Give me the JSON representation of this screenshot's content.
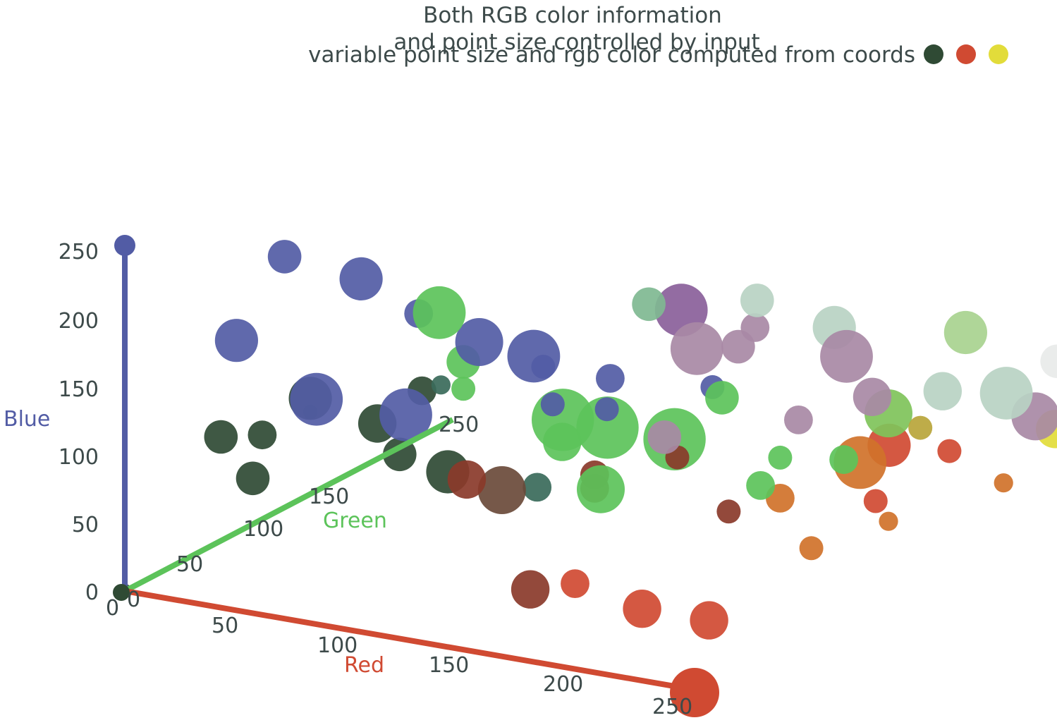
{
  "chart_data": {
    "type": "scatter",
    "projection": "3d",
    "title": "Both RGB color information",
    "subtitle": "and point size controlled by input",
    "legend_label": "variable point size and rgb color computed from coords",
    "legend_placement": "top-right",
    "legend_swatches": [
      "#2f4a34",
      "#d04a32",
      "#e2dc3a"
    ],
    "axes": {
      "red": {
        "label": "Red",
        "color": "#d04a32",
        "range": [
          0,
          255
        ],
        "ticks": [
          "0",
          "50",
          "100",
          "150",
          "200",
          "250"
        ]
      },
      "green": {
        "label": "Green",
        "color": "#5cc35a",
        "range": [
          0,
          255
        ],
        "ticks": [
          "0",
          "50",
          "100",
          "150",
          "250"
        ]
      },
      "blue": {
        "label": "Blue",
        "color": "#525ca5",
        "range": [
          0,
          255
        ],
        "ticks": [
          "0",
          "50",
          "100",
          "150",
          "200",
          "250"
        ]
      }
    },
    "series": [
      {
        "columns": [
          "r",
          "g",
          "b",
          "size",
          "color"
        ],
        "points": [
          [
            0,
            0,
            0,
            3,
            "#2f4a34"
          ],
          [
            255,
            0,
            0,
            8,
            "#d04a32"
          ],
          [
            0,
            0,
            255,
            3,
            "#525ca5"
          ],
          [
            60,
            20,
            255,
            7,
            "#525ca5"
          ],
          [
            100,
            10,
            255,
            9,
            "#525ca5"
          ],
          [
            150,
            15,
            220,
            10,
            "#525ca5"
          ],
          [
            160,
            40,
            200,
            11,
            "#525ca5"
          ],
          [
            50,
            0,
            200,
            9,
            "#525ca5"
          ],
          [
            80,
            10,
            160,
            11,
            "#525ca5"
          ],
          [
            120,
            10,
            160,
            11,
            "#525ca5"
          ],
          [
            135,
            10,
            240,
            11,
            "#5cc35a"
          ],
          [
            120,
            20,
            230,
            6,
            "#525ca5"
          ],
          [
            200,
            60,
            240,
            7,
            "#7fb891"
          ],
          [
            260,
            40,
            270,
            7,
            "#b9d3c3"
          ],
          [
            400,
            30,
            270,
            7,
            "#e8eae9"
          ],
          [
            260,
            100,
            220,
            9,
            "#b9d3c3"
          ],
          [
            210,
            80,
            200,
            11,
            "#a889a5"
          ],
          [
            300,
            40,
            240,
            11,
            "#a889a5"
          ],
          [
            300,
            60,
            200,
            8,
            "#a889a5"
          ],
          [
            290,
            150,
            200,
            9,
            "#a8d38f"
          ],
          [
            350,
            100,
            180,
            10,
            "#a889a5"
          ],
          [
            360,
            60,
            220,
            11,
            "#b9d3c3"
          ],
          [
            320,
            80,
            200,
            8,
            "#b9d3c3"
          ],
          [
            180,
            120,
            200,
            11,
            "#8a5f9a"
          ],
          [
            190,
            160,
            170,
            6,
            "#a889a5"
          ],
          [
            290,
            90,
            170,
            10,
            "#7fc35a"
          ],
          [
            330,
            170,
            150,
            8,
            "#e2dc3a"
          ],
          [
            330,
            150,
            140,
            8,
            "#e2dc3a"
          ],
          [
            300,
            120,
            130,
            5,
            "#d04a32"
          ],
          [
            290,
            80,
            110,
            5,
            "#d04a32"
          ],
          [
            260,
            120,
            110,
            11,
            "#d0722a"
          ],
          [
            250,
            160,
            100,
            9,
            "#d04a32"
          ],
          [
            330,
            220,
            120,
            10,
            "#e2dc3a"
          ],
          [
            320,
            250,
            120,
            10,
            "#e2dc3a"
          ],
          [
            290,
            90,
            90,
            4,
            "#d0722a"
          ],
          [
            250,
            20,
            40,
            8,
            "#d04a32"
          ],
          [
            220,
            20,
            40,
            8,
            "#d04a32"
          ],
          [
            190,
            20,
            50,
            6,
            "#d04a32"
          ],
          [
            170,
            20,
            40,
            8,
            "#8a3a2a"
          ],
          [
            200,
            80,
            130,
            13,
            "#5cc35a"
          ],
          [
            170,
            80,
            130,
            13,
            "#5cc35a"
          ],
          [
            150,
            80,
            130,
            13,
            "#5cc35a"
          ],
          [
            190,
            40,
            110,
            10,
            "#5cc35a"
          ],
          [
            170,
            70,
            100,
            6,
            "#8a3a2a"
          ],
          [
            230,
            110,
            110,
            5,
            "#5cc35a"
          ],
          [
            140,
            50,
            90,
            10,
            "#6a4a3a"
          ],
          [
            110,
            60,
            90,
            9,
            "#2f4a34"
          ],
          [
            60,
            40,
            140,
            9,
            "#2f4a34"
          ],
          [
            40,
            30,
            80,
            7,
            "#2f4a34"
          ],
          [
            20,
            40,
            100,
            7,
            "#2f4a34"
          ],
          [
            50,
            20,
            120,
            6,
            "#2f4a34"
          ],
          [
            90,
            40,
            130,
            8,
            "#2f4a34"
          ],
          [
            100,
            40,
            110,
            7,
            "#2f4a34"
          ],
          [
            130,
            40,
            100,
            8,
            "#8a3a2a"
          ],
          [
            150,
            60,
            90,
            6,
            "#3a6a5a"
          ],
          [
            140,
            20,
            200,
            7,
            "#5cc35a"
          ],
          [
            140,
            20,
            180,
            5,
            "#5cc35a"
          ],
          [
            170,
            70,
            90,
            6,
            "#8a3a2a"
          ],
          [
            110,
            40,
            160,
            6,
            "#2f4a34"
          ],
          [
            60,
            40,
            130,
            3,
            "#2f4a34"
          ],
          [
            130,
            20,
            180,
            4,
            "#3a6a5a"
          ],
          [
            170,
            30,
            200,
            5,
            "#525ca5"
          ],
          [
            180,
            20,
            180,
            5,
            "#525ca5"
          ],
          [
            200,
            30,
            200,
            6,
            "#525ca5"
          ],
          [
            190,
            10,
            160,
            8,
            "#5cc35a"
          ],
          [
            240,
            60,
            220,
            7,
            "#a889a5"
          ],
          [
            250,
            30,
            200,
            7,
            "#5cc35a"
          ],
          [
            230,
            20,
            170,
            7,
            "#a889a5"
          ],
          [
            290,
            20,
            200,
            6,
            "#a889a5"
          ],
          [
            310,
            80,
            170,
            5,
            "#b8a53a"
          ],
          [
            270,
            90,
            130,
            6,
            "#5cc35a"
          ],
          [
            250,
            60,
            120,
            6,
            "#5cc35a"
          ],
          [
            230,
            30,
            150,
            5,
            "#8a3a2a"
          ],
          [
            230,
            70,
            90,
            5,
            "#8a3a2a"
          ],
          [
            240,
            40,
            200,
            5,
            "#525ca5"
          ],
          [
            210,
            10,
            190,
            5,
            "#525ca5"
          ],
          [
            230,
            110,
            80,
            6,
            "#d0722a"
          ],
          [
            290,
            30,
            100,
            5,
            "#d0722a"
          ],
          [
            330,
            110,
            120,
            4,
            "#d0722a"
          ]
        ]
      }
    ]
  }
}
